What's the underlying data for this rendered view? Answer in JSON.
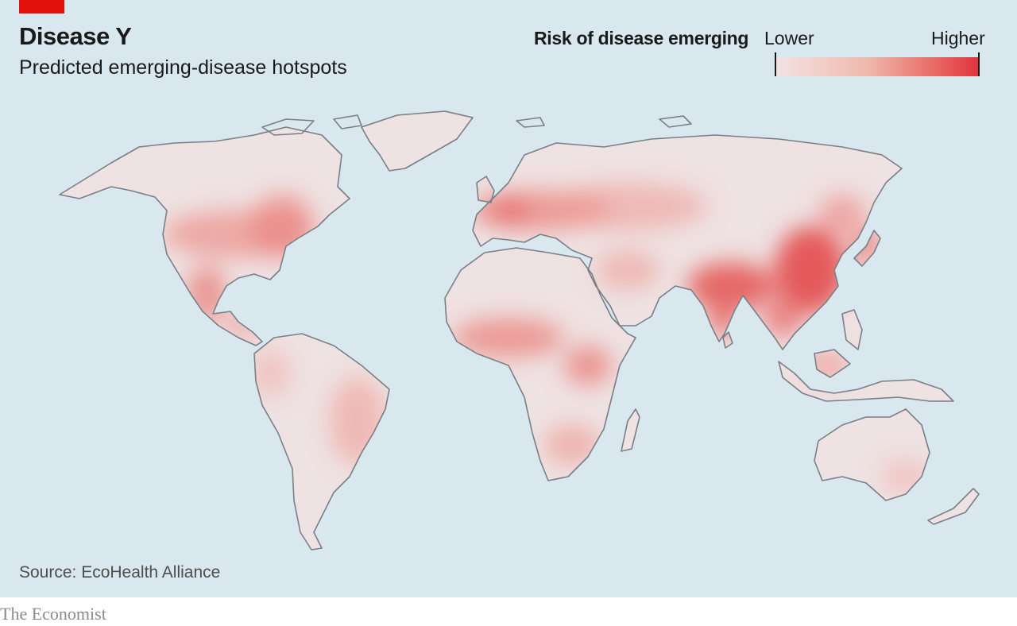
{
  "header": {
    "title": "Disease Y",
    "subtitle": "Predicted emerging-disease hotspots"
  },
  "legend": {
    "title": "Risk of disease emerging",
    "low_label": "Lower",
    "high_label": "Higher",
    "color_low": "#f3e3e3",
    "color_high": "#e0333c"
  },
  "colors": {
    "accent": "#e3120b",
    "ocean": "#d9e7ee",
    "land_base": "#efe2e2",
    "coast": "#7a7f85"
  },
  "source": "Source: EcoHealth Alliance",
  "brand": "The Economist"
}
